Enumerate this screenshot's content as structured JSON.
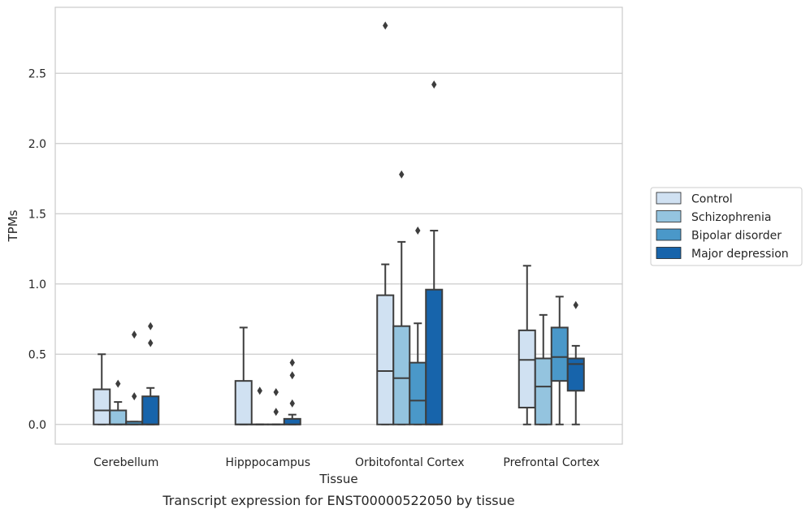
{
  "chart_data": {
    "type": "boxplot",
    "title": "Transcript expression for ENST00000522050 by tissue",
    "xlabel": "Tissue",
    "ylabel": "TPMs",
    "ylim": [
      -0.14,
      2.97
    ],
    "yticks": [
      0.0,
      0.5,
      1.0,
      1.5,
      2.0,
      2.5
    ],
    "ytick_labels": [
      "0.0",
      "0.5",
      "1.0",
      "1.5",
      "2.0",
      "2.5"
    ],
    "grid": true,
    "legend_position": "right",
    "categories": [
      "Cerebellum",
      "Hipppocampus",
      "Orbitofontal Cortex",
      "Prefrontal Cortex"
    ],
    "series": [
      {
        "name": "Control",
        "color": "#d0e1f2",
        "boxes": [
          {
            "whislo": 0.0,
            "q1": 0.0,
            "med": 0.1,
            "q3": 0.25,
            "whishi": 0.5,
            "fliers": []
          },
          {
            "whislo": 0.0,
            "q1": 0.0,
            "med": 0.0,
            "q3": 0.31,
            "whishi": 0.69,
            "fliers": []
          },
          {
            "whislo": 0.0,
            "q1": 0.0,
            "med": 0.38,
            "q3": 0.92,
            "whishi": 1.14,
            "fliers": [
              2.84
            ]
          },
          {
            "whislo": 0.0,
            "q1": 0.12,
            "med": 0.46,
            "q3": 0.67,
            "whishi": 1.13,
            "fliers": []
          }
        ]
      },
      {
        "name": "Schizophrenia",
        "color": "#94c4df",
        "boxes": [
          {
            "whislo": 0.0,
            "q1": 0.0,
            "med": 0.0,
            "q3": 0.1,
            "whishi": 0.16,
            "fliers": [
              0.29
            ]
          },
          {
            "whislo": 0.0,
            "q1": 0.0,
            "med": 0.0,
            "q3": 0.0,
            "whishi": 0.0,
            "fliers": [
              0.24
            ]
          },
          {
            "whislo": 0.0,
            "q1": 0.0,
            "med": 0.33,
            "q3": 0.7,
            "whishi": 1.3,
            "fliers": [
              1.78
            ]
          },
          {
            "whislo": 0.0,
            "q1": 0.0,
            "med": 0.27,
            "q3": 0.47,
            "whishi": 0.78,
            "fliers": []
          }
        ]
      },
      {
        "name": "Bipolar disorder",
        "color": "#4a98c9",
        "boxes": [
          {
            "whislo": 0.0,
            "q1": 0.0,
            "med": 0.0,
            "q3": 0.02,
            "whishi": 0.02,
            "fliers": [
              0.2,
              0.64
            ]
          },
          {
            "whislo": 0.0,
            "q1": 0.0,
            "med": 0.0,
            "q3": 0.0,
            "whishi": 0.0,
            "fliers": [
              0.09,
              0.23
            ]
          },
          {
            "whislo": 0.0,
            "q1": 0.0,
            "med": 0.17,
            "q3": 0.44,
            "whishi": 0.72,
            "fliers": [
              1.38
            ]
          },
          {
            "whislo": 0.0,
            "q1": 0.31,
            "med": 0.48,
            "q3": 0.69,
            "whishi": 0.91,
            "fliers": []
          }
        ]
      },
      {
        "name": "Major depression",
        "color": "#1764ab",
        "boxes": [
          {
            "whislo": 0.0,
            "q1": 0.0,
            "med": 0.0,
            "q3": 0.2,
            "whishi": 0.26,
            "fliers": [
              0.58,
              0.7
            ]
          },
          {
            "whislo": 0.0,
            "q1": 0.0,
            "med": 0.0,
            "q3": 0.04,
            "whishi": 0.07,
            "fliers": [
              0.15,
              0.35,
              0.44
            ]
          },
          {
            "whislo": 0.0,
            "q1": 0.0,
            "med": 0.0,
            "q3": 0.96,
            "whishi": 1.38,
            "fliers": [
              2.42
            ]
          },
          {
            "whislo": 0.0,
            "q1": 0.24,
            "med": 0.43,
            "q3": 0.47,
            "whishi": 0.56,
            "fliers": [
              0.85
            ]
          }
        ]
      }
    ]
  }
}
